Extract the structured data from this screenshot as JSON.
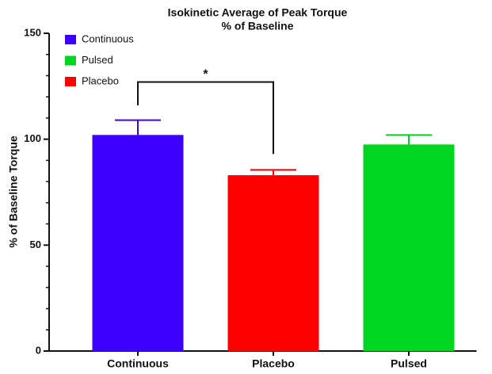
{
  "chart_data": {
    "type": "bar",
    "title": [
      "Isokinetic Average of Peak Torque",
      "% of Baseline"
    ],
    "ylabel": "% of Baseline Torque",
    "categories": [
      "Continuous",
      "Placebo",
      "Pulsed"
    ],
    "series": [
      {
        "name": "Continuous",
        "color": "#3d00ff",
        "values": [
          102,
          null,
          null
        ],
        "errors": [
          7,
          null,
          null
        ]
      },
      {
        "name": "Pulsed",
        "color": "#00d620",
        "values": [
          null,
          null,
          97.5
        ],
        "errors": [
          null,
          null,
          4.5
        ]
      },
      {
        "name": "Placebo",
        "color": "#ff0000",
        "values": [
          null,
          83,
          null
        ],
        "errors": [
          null,
          2.5,
          null
        ]
      }
    ],
    "ylim": [
      0,
      150
    ],
    "yticks": [
      0,
      50,
      100,
      150
    ],
    "minor_yticks": [
      10,
      20,
      30,
      40,
      60,
      70,
      80,
      90,
      110,
      120,
      130,
      140
    ],
    "legend": "upper left",
    "annotations": [
      {
        "text": "*",
        "categories": [
          0,
          1
        ],
        "y": 127,
        "ends": [
          116,
          93
        ]
      }
    ]
  }
}
